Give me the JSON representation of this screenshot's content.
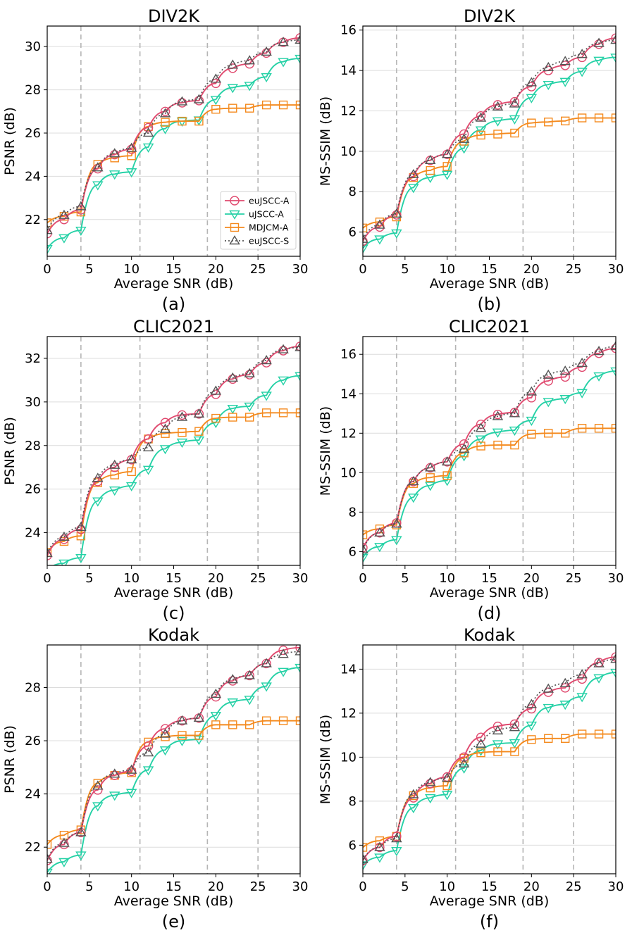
{
  "chart_data": {
    "type": "line",
    "x": [
      0,
      2,
      4,
      6,
      8,
      10,
      12,
      14,
      16,
      18,
      20,
      22,
      24,
      26,
      28,
      30
    ],
    "xlabel": "Average SNR (dB)",
    "xlim": [
      0,
      30
    ],
    "x_ticks": [
      "0",
      "5",
      "10",
      "15",
      "20",
      "25",
      "30"
    ],
    "vertical_reference_lines_x": [
      4,
      11,
      19,
      25
    ],
    "legend": {
      "placement": "lower-right",
      "panel": "a",
      "entries": [
        {
          "name": "euJSCC-A",
          "color": "#e04a6f",
          "marker": "circle",
          "line": "solid"
        },
        {
          "name": "uJSCC-A",
          "color": "#25d1a6",
          "marker": "triangle-down",
          "line": "solid"
        },
        {
          "name": "MDJCM-A",
          "color": "#f48a1e",
          "marker": "square",
          "line": "solid"
        },
        {
          "name": "euJSCC-S",
          "color": "#555555",
          "marker": "triangle-up",
          "line": "dotted"
        }
      ]
    },
    "panels": [
      {
        "id": "a",
        "title": "DIV2K",
        "caption": "(a)",
        "ylabel": "PSNR (dB)",
        "ylim": [
          20.3,
          30.95
        ],
        "y_ticks": [
          "22",
          "24",
          "26",
          "28",
          "30"
        ],
        "series": [
          {
            "name": "euJSCC-A",
            "values": [
              21.35,
              22.0,
              22.45,
              24.35,
              25.0,
              25.25,
              26.25,
              27.0,
              27.4,
              27.5,
              28.3,
              29.0,
              29.2,
              29.7,
              30.2,
              30.4
            ]
          },
          {
            "name": "uJSCC-A",
            "values": [
              20.65,
              21.15,
              21.5,
              23.6,
              24.1,
              24.2,
              25.35,
              26.2,
              26.55,
              26.6,
              27.55,
              28.1,
              28.2,
              28.6,
              29.3,
              29.45
            ]
          },
          {
            "name": "MDJCM-A",
            "values": [
              21.85,
              22.15,
              22.35,
              24.55,
              24.85,
              24.95,
              26.3,
              26.5,
              26.55,
              26.55,
              27.1,
              27.15,
              27.15,
              27.3,
              27.3,
              27.3
            ]
          },
          {
            "name": "euJSCC-S",
            "values": [
              21.5,
              22.2,
              22.6,
              24.4,
              25.05,
              25.3,
              26.0,
              26.9,
              27.45,
              27.55,
              28.5,
              29.15,
              29.35,
              29.75,
              30.2,
              30.3
            ]
          }
        ]
      },
      {
        "id": "b",
        "title": "DIV2K",
        "caption": "(b)",
        "ylabel": "MS-SSIM (dB)",
        "ylim": [
          4.8,
          16.2
        ],
        "y_ticks": [
          "6",
          "8",
          "10",
          "12",
          "14",
          "16"
        ],
        "series": [
          {
            "name": "euJSCC-A",
            "values": [
              5.55,
              6.25,
              6.85,
              8.75,
              9.55,
              9.85,
              10.85,
              11.75,
              12.3,
              12.45,
              13.2,
              14.0,
              14.25,
              14.65,
              15.3,
              15.6
            ]
          },
          {
            "name": "uJSCC-A",
            "values": [
              5.2,
              5.65,
              5.95,
              8.2,
              8.7,
              8.85,
              10.15,
              11.05,
              11.5,
              11.6,
              12.65,
              13.3,
              13.45,
              13.95,
              14.5,
              14.65
            ]
          },
          {
            "name": "MDJCM-A",
            "values": [
              6.2,
              6.5,
              6.75,
              8.7,
              9.05,
              9.25,
              10.5,
              10.8,
              10.85,
              10.9,
              11.4,
              11.45,
              11.5,
              11.65,
              11.65,
              11.65
            ]
          },
          {
            "name": "euJSCC-S",
            "values": [
              5.65,
              6.35,
              6.9,
              8.85,
              9.55,
              9.85,
              10.6,
              11.65,
              12.2,
              12.35,
              13.4,
              14.15,
              14.45,
              14.8,
              15.35,
              15.5
            ]
          }
        ]
      },
      {
        "id": "c",
        "title": "CLIC2021",
        "caption": "(c)",
        "ylabel": "PSNR (dB)",
        "ylim": [
          22.5,
          33.0
        ],
        "y_ticks": [
          "24",
          "26",
          "28",
          "30",
          "32"
        ],
        "series": [
          {
            "name": "euJSCC-A",
            "values": [
              22.95,
              23.7,
              24.15,
              26.35,
              27.0,
              27.35,
              28.3,
              29.05,
              29.4,
              29.45,
              30.35,
              31.05,
              31.25,
              31.8,
              32.35,
              32.55
            ]
          },
          {
            "name": "uJSCC-A",
            "values": [
              22.3,
              22.6,
              22.85,
              25.45,
              25.95,
              26.15,
              26.9,
              27.85,
              28.15,
              28.25,
              29.05,
              29.7,
              29.8,
              30.3,
              31.0,
              31.2
            ]
          },
          {
            "name": "MDJCM-A",
            "values": [
              23.1,
              23.6,
              23.85,
              26.3,
              26.65,
              26.8,
              28.3,
              28.55,
              28.6,
              28.65,
              29.25,
              29.3,
              29.3,
              29.5,
              29.5,
              29.5
            ]
          },
          {
            "name": "euJSCC-S",
            "values": [
              23.05,
              23.8,
              24.25,
              26.5,
              27.1,
              27.35,
              27.9,
              28.75,
              29.3,
              29.45,
              30.5,
              31.1,
              31.3,
              31.9,
              32.4,
              32.5
            ]
          }
        ]
      },
      {
        "id": "d",
        "title": "CLIC2021",
        "caption": "(d)",
        "ylabel": "MS-SSIM (dB)",
        "ylim": [
          5.3,
          16.9
        ],
        "y_ticks": [
          "6",
          "8",
          "10",
          "12",
          "14",
          "16"
        ],
        "series": [
          {
            "name": "euJSCC-A",
            "values": [
              6.2,
              6.95,
              7.45,
              9.55,
              10.25,
              10.55,
              11.45,
              12.45,
              12.95,
              13.05,
              13.8,
              14.65,
              14.85,
              15.35,
              16.05,
              16.3
            ]
          },
          {
            "name": "uJSCC-A",
            "values": [
              5.7,
              6.25,
              6.6,
              8.75,
              9.35,
              9.6,
              10.85,
              11.7,
              12.05,
              12.15,
              12.65,
              13.6,
              13.75,
              14.05,
              14.9,
              15.15
            ]
          },
          {
            "name": "MDJCM-A",
            "values": [
              6.85,
              7.15,
              7.35,
              9.45,
              9.75,
              9.85,
              11.0,
              11.35,
              11.4,
              11.4,
              11.95,
              12.0,
              12.0,
              12.25,
              12.25,
              12.25
            ]
          },
          {
            "name": "euJSCC-S",
            "values": [
              6.1,
              6.95,
              7.4,
              9.55,
              10.25,
              10.55,
              11.2,
              12.25,
              12.85,
              13.0,
              14.1,
              14.95,
              15.15,
              15.55,
              16.15,
              16.4
            ]
          }
        ]
      },
      {
        "id": "e",
        "title": "Kodak",
        "caption": "(e)",
        "ylabel": "PSNR (dB)",
        "ylim": [
          21.0,
          29.6
        ],
        "y_ticks": [
          "22",
          "24",
          "26",
          "28"
        ],
        "series": [
          {
            "name": "euJSCC-A",
            "values": [
              21.5,
              22.1,
              22.55,
              24.15,
              24.7,
              24.85,
              25.8,
              26.45,
              26.75,
              26.85,
              27.65,
              28.25,
              28.45,
              28.9,
              29.4,
              29.5
            ]
          },
          {
            "name": "uJSCC-A",
            "values": [
              21.05,
              21.45,
              21.7,
              23.55,
              23.95,
              24.05,
              24.9,
              25.65,
              26.0,
              26.05,
              26.95,
              27.45,
              27.55,
              28.05,
              28.6,
              28.75
            ]
          },
          {
            "name": "MDJCM-A",
            "values": [
              22.1,
              22.45,
              22.65,
              24.4,
              24.7,
              24.8,
              25.95,
              26.15,
              26.2,
              26.2,
              26.6,
              26.6,
              26.6,
              26.75,
              26.75,
              26.75
            ]
          },
          {
            "name": "euJSCC-S",
            "values": [
              21.55,
              22.15,
              22.55,
              24.3,
              24.75,
              24.9,
              25.55,
              26.25,
              26.75,
              26.85,
              27.75,
              28.3,
              28.45,
              28.9,
              29.25,
              29.35
            ]
          }
        ]
      },
      {
        "id": "f",
        "title": "Kodak",
        "caption": "(f)",
        "ylabel": "MS-SSIM (dB)",
        "ylim": [
          4.7,
          15.1
        ],
        "y_ticks": [
          "6",
          "8",
          "10",
          "12",
          "14"
        ],
        "series": [
          {
            "name": "euJSCC-A",
            "values": [
              5.3,
              5.9,
              6.4,
              8.15,
              8.8,
              9.1,
              10.0,
              10.9,
              11.4,
              11.5,
              12.2,
              12.95,
              13.15,
              13.55,
              14.3,
              14.55
            ]
          },
          {
            "name": "uJSCC-A",
            "values": [
              5.1,
              5.45,
              5.75,
              7.7,
              8.15,
              8.3,
              9.5,
              10.3,
              10.6,
              10.65,
              11.45,
              12.25,
              12.4,
              12.75,
              13.6,
              13.85
            ]
          },
          {
            "name": "MDJCM-A",
            "values": [
              5.9,
              6.2,
              6.4,
              8.25,
              8.6,
              8.7,
              9.95,
              10.2,
              10.25,
              10.25,
              10.8,
              10.85,
              10.85,
              11.05,
              11.05,
              11.05
            ]
          },
          {
            "name": "euJSCC-S",
            "values": [
              5.35,
              5.9,
              6.3,
              8.3,
              8.85,
              9.05,
              9.7,
              10.6,
              11.2,
              11.35,
              12.4,
              13.1,
              13.35,
              13.75,
              14.25,
              14.45
            ]
          }
        ]
      }
    ]
  }
}
